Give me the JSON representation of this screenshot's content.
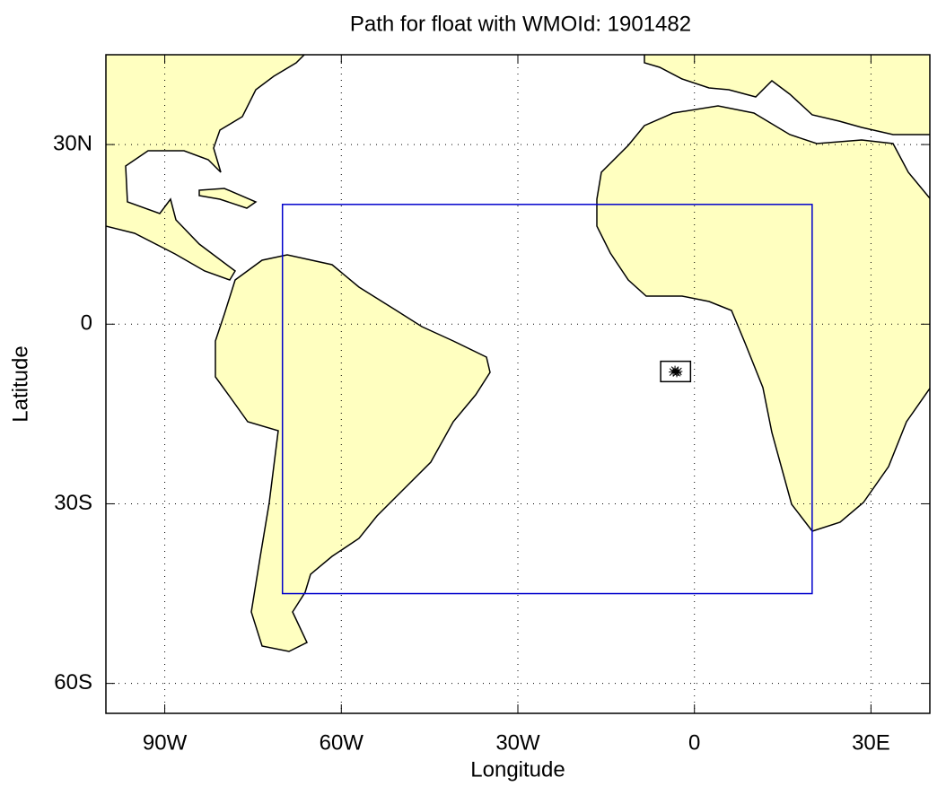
{
  "chart_data": {
    "type": "map",
    "title": "Path for float with WMOId: 1901482",
    "x_label": "Longitude",
    "y_label": "Latitude",
    "xlim": [
      -100,
      40
    ],
    "ylim": [
      -65,
      45
    ],
    "xticks": [
      {
        "value": -90,
        "label": "90W"
      },
      {
        "value": -60,
        "label": "60W"
      },
      {
        "value": -30,
        "label": "30W"
      },
      0,
      {
        "value": 30,
        "label": "30E"
      }
    ],
    "yticks": [
      {
        "value": -60,
        "label": "60S"
      },
      {
        "value": -30,
        "label": "30S"
      },
      0,
      {
        "value": 30,
        "label": "30N"
      }
    ],
    "grid": true,
    "region": {
      "lon": [
        -70,
        20
      ],
      "lat": [
        -45,
        20
      ],
      "color": "#0000cc"
    },
    "float_path": {
      "x": [
        -3.6,
        -3.3,
        -3.0,
        -2.8
      ],
      "y": [
        -8.0,
        -7.7,
        -8.1,
        -7.9
      ],
      "color": "#000000"
    }
  }
}
